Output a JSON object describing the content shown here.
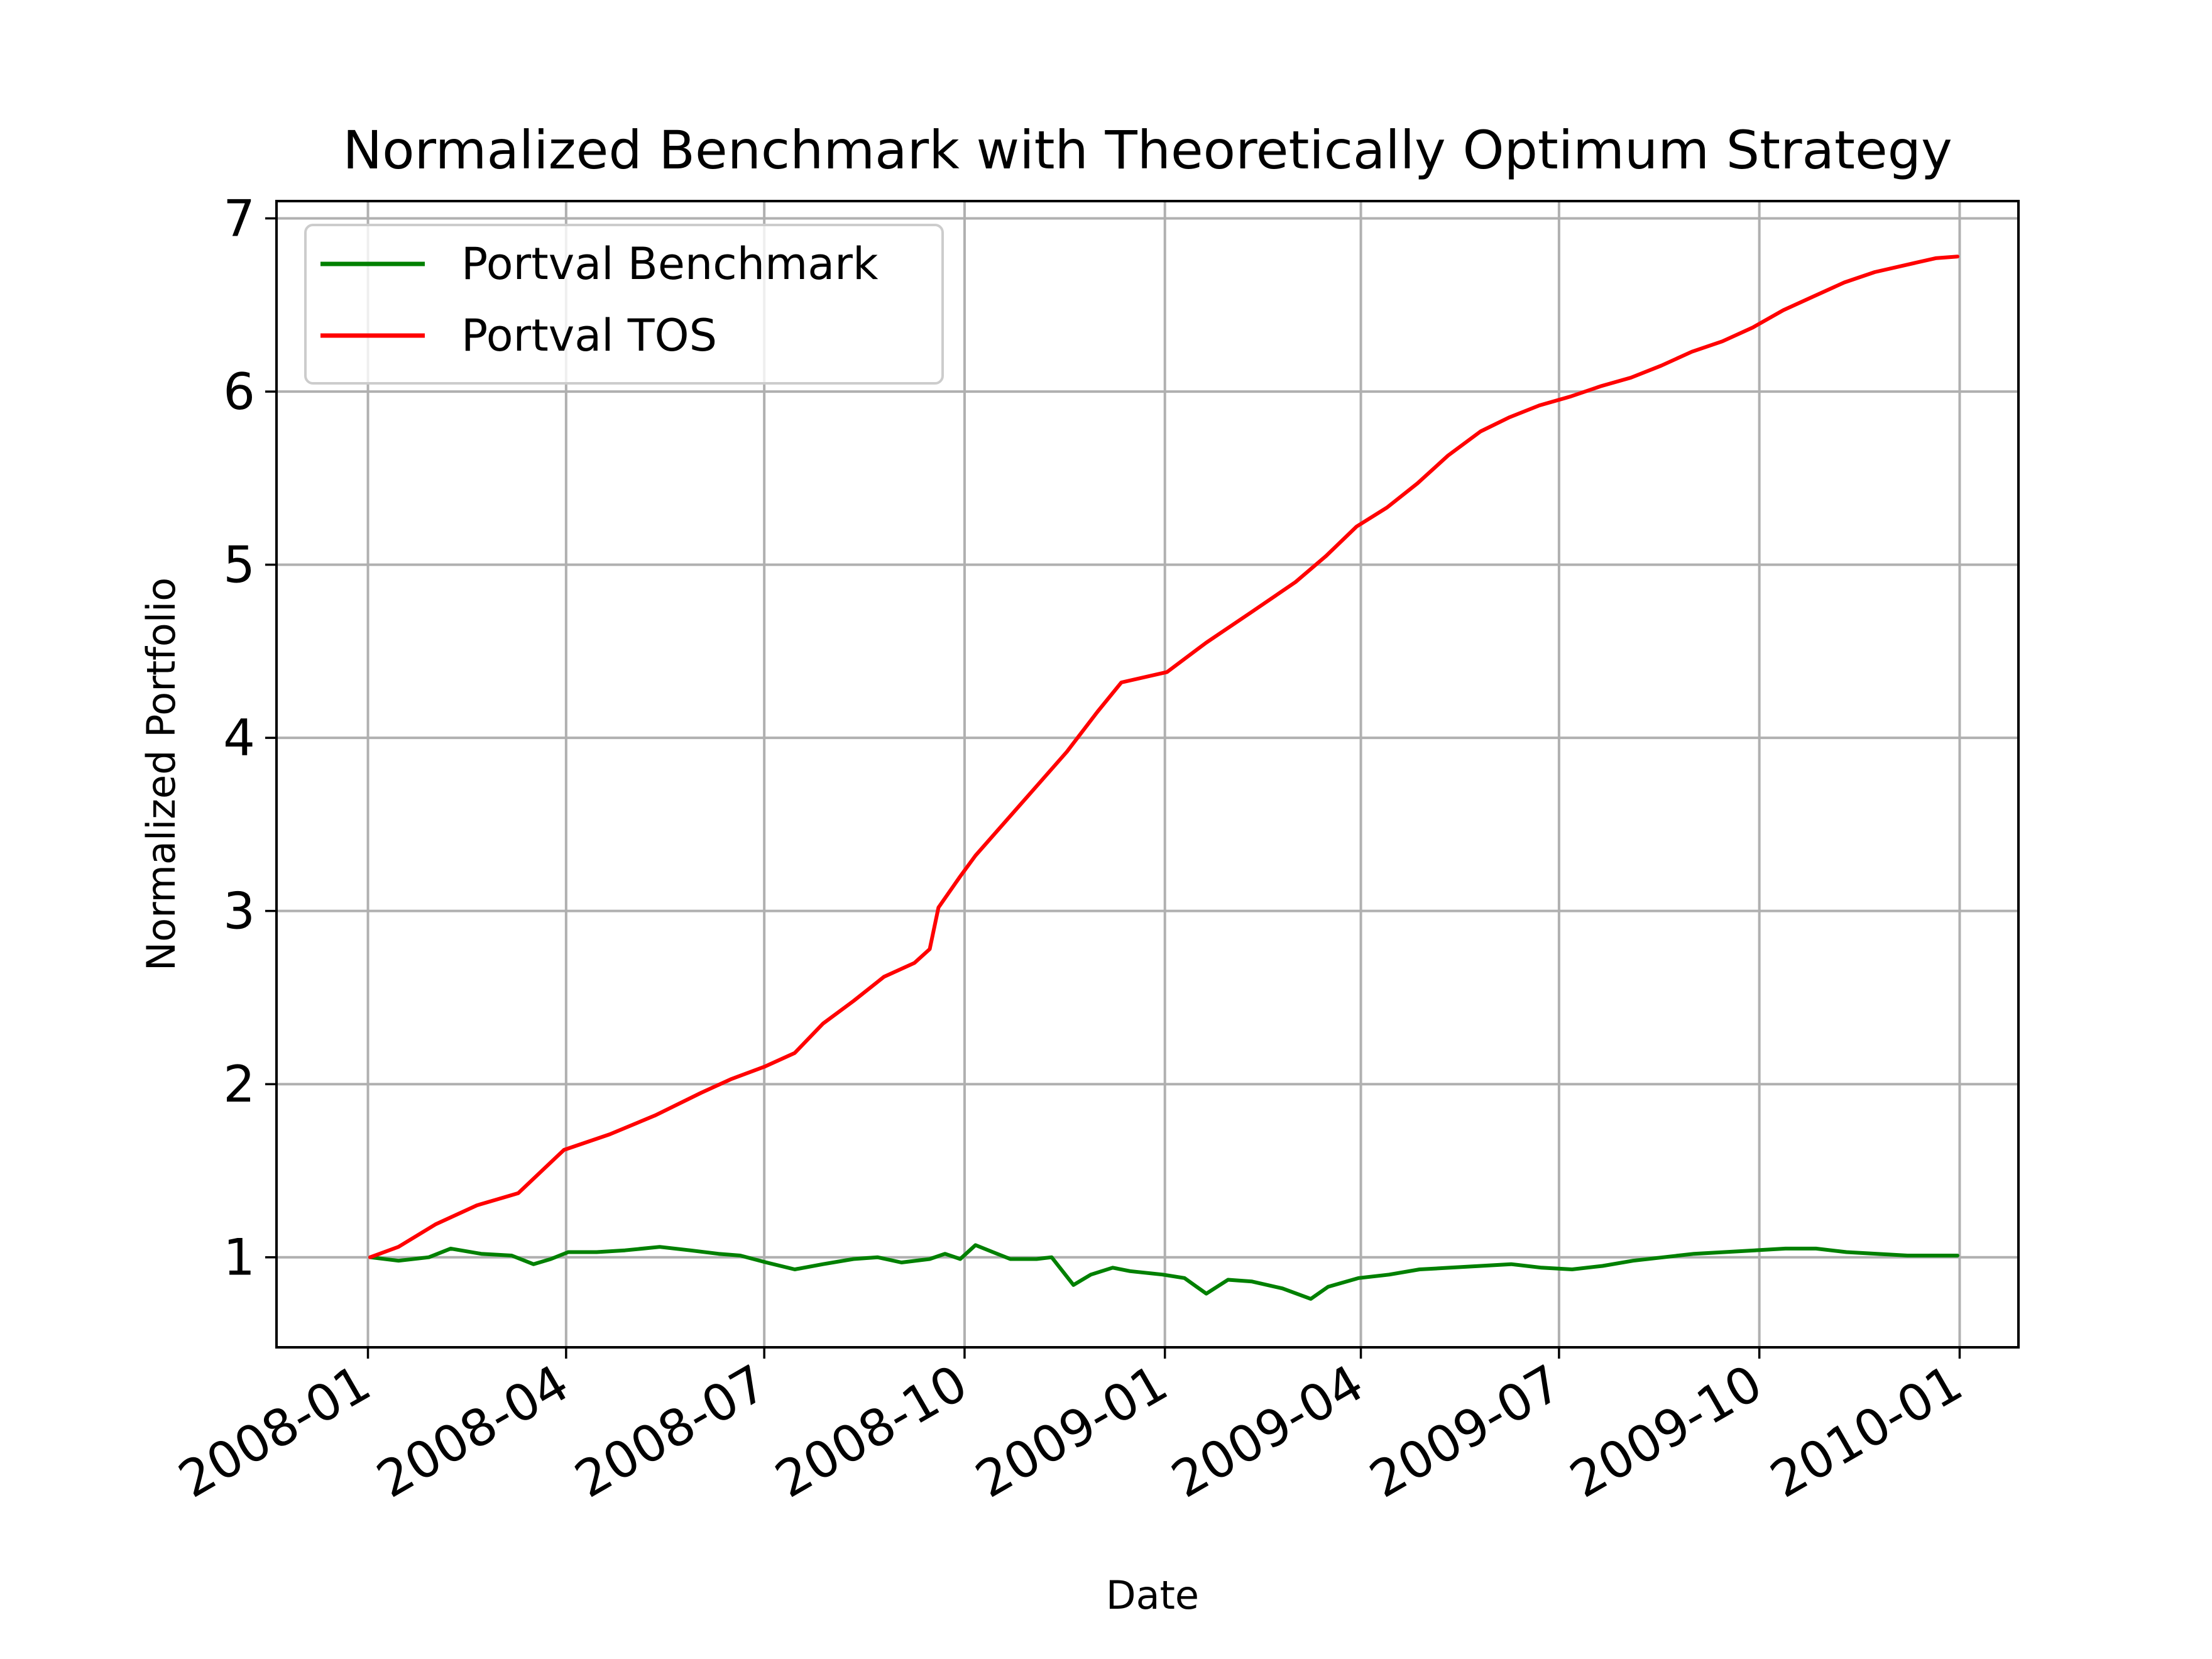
{
  "chart_data": {
    "type": "line",
    "title": "Normalized Benchmark with Theoretically Optimum Strategy",
    "xlabel": "Date",
    "ylabel": "Normalized Portfolio",
    "x_axis": "date",
    "xlim": [
      "2007-11-20",
      "2010-01-28"
    ],
    "ylim": [
      0.48,
      7.1
    ],
    "x_ticks": [
      "2008-01",
      "2008-04",
      "2008-07",
      "2008-10",
      "2009-01",
      "2009-04",
      "2009-07",
      "2009-10",
      "2010-01"
    ],
    "y_ticks": [
      1,
      2,
      3,
      4,
      5,
      6,
      7
    ],
    "grid": true,
    "legend": {
      "position": "top-left"
    },
    "series": [
      {
        "name": "Portval Benchmark",
        "color": "#008000",
        "points": [
          [
            "2008-01-02",
            1.0
          ],
          [
            "2008-01-15",
            0.98
          ],
          [
            "2008-01-29",
            1.0
          ],
          [
            "2008-02-08",
            1.05
          ],
          [
            "2008-02-22",
            1.02
          ],
          [
            "2008-03-07",
            1.01
          ],
          [
            "2008-03-17",
            0.96
          ],
          [
            "2008-03-25",
            0.99
          ],
          [
            "2008-04-02",
            1.03
          ],
          [
            "2008-04-15",
            1.03
          ],
          [
            "2008-04-28",
            1.04
          ],
          [
            "2008-05-14",
            1.06
          ],
          [
            "2008-05-28",
            1.04
          ],
          [
            "2008-06-10",
            1.02
          ],
          [
            "2008-06-20",
            1.01
          ],
          [
            "2008-07-02",
            0.97
          ],
          [
            "2008-07-15",
            0.93
          ],
          [
            "2008-07-28",
            0.96
          ],
          [
            "2008-08-11",
            0.99
          ],
          [
            "2008-08-22",
            1.0
          ],
          [
            "2008-09-02",
            0.97
          ],
          [
            "2008-09-15",
            0.99
          ],
          [
            "2008-09-22",
            1.02
          ],
          [
            "2008-09-29",
            0.99
          ],
          [
            "2008-10-06",
            1.07
          ],
          [
            "2008-10-14",
            1.03
          ],
          [
            "2008-10-22",
            0.99
          ],
          [
            "2008-11-03",
            0.99
          ],
          [
            "2008-11-10",
            1.0
          ],
          [
            "2008-11-20",
            0.84
          ],
          [
            "2008-11-28",
            0.9
          ],
          [
            "2008-12-08",
            0.94
          ],
          [
            "2008-12-16",
            0.92
          ],
          [
            "2008-12-31",
            0.9
          ],
          [
            "2009-01-10",
            0.88
          ],
          [
            "2009-01-20",
            0.79
          ],
          [
            "2009-01-30",
            0.87
          ],
          [
            "2009-02-10",
            0.86
          ],
          [
            "2009-02-24",
            0.82
          ],
          [
            "2009-03-09",
            0.76
          ],
          [
            "2009-03-17",
            0.83
          ],
          [
            "2009-03-31",
            0.88
          ],
          [
            "2009-04-14",
            0.9
          ],
          [
            "2009-04-28",
            0.93
          ],
          [
            "2009-05-12",
            0.94
          ],
          [
            "2009-05-26",
            0.95
          ],
          [
            "2009-06-09",
            0.96
          ],
          [
            "2009-06-23",
            0.94
          ],
          [
            "2009-07-07",
            0.93
          ],
          [
            "2009-07-21",
            0.95
          ],
          [
            "2009-08-04",
            0.98
          ],
          [
            "2009-08-18",
            1.0
          ],
          [
            "2009-09-01",
            1.02
          ],
          [
            "2009-09-15",
            1.03
          ],
          [
            "2009-09-29",
            1.04
          ],
          [
            "2009-10-13",
            1.05
          ],
          [
            "2009-10-27",
            1.05
          ],
          [
            "2009-11-10",
            1.03
          ],
          [
            "2009-11-24",
            1.02
          ],
          [
            "2009-12-08",
            1.01
          ],
          [
            "2009-12-31",
            1.01
          ]
        ]
      },
      {
        "name": "Portval TOS",
        "color": "#ff0000",
        "points": [
          [
            "2008-01-02",
            1.0
          ],
          [
            "2008-01-15",
            1.06
          ],
          [
            "2008-02-01",
            1.19
          ],
          [
            "2008-02-20",
            1.3
          ],
          [
            "2008-03-10",
            1.37
          ],
          [
            "2008-03-31",
            1.62
          ],
          [
            "2008-04-21",
            1.71
          ],
          [
            "2008-05-12",
            1.82
          ],
          [
            "2008-06-02",
            1.95
          ],
          [
            "2008-06-16",
            2.03
          ],
          [
            "2008-07-01",
            2.1
          ],
          [
            "2008-07-15",
            2.18
          ],
          [
            "2008-07-28",
            2.35
          ],
          [
            "2008-08-11",
            2.48
          ],
          [
            "2008-08-25",
            2.62
          ],
          [
            "2008-09-08",
            2.7
          ],
          [
            "2008-09-15",
            2.78
          ],
          [
            "2008-09-19",
            3.02
          ],
          [
            "2008-09-29",
            3.2
          ],
          [
            "2008-10-06",
            3.32
          ],
          [
            "2008-10-20",
            3.52
          ],
          [
            "2008-11-03",
            3.72
          ],
          [
            "2008-11-17",
            3.92
          ],
          [
            "2008-12-01",
            4.15
          ],
          [
            "2008-12-12",
            4.32
          ],
          [
            "2009-01-02",
            4.38
          ],
          [
            "2009-01-20",
            4.55
          ],
          [
            "2009-02-09",
            4.72
          ],
          [
            "2009-03-02",
            4.9
          ],
          [
            "2009-03-16",
            5.05
          ],
          [
            "2009-03-30",
            5.22
          ],
          [
            "2009-04-13",
            5.33
          ],
          [
            "2009-04-27",
            5.47
          ],
          [
            "2009-05-11",
            5.63
          ],
          [
            "2009-05-26",
            5.77
          ],
          [
            "2009-06-08",
            5.85
          ],
          [
            "2009-06-22",
            5.92
          ],
          [
            "2009-07-06",
            5.97
          ],
          [
            "2009-07-20",
            6.03
          ],
          [
            "2009-08-03",
            6.08
          ],
          [
            "2009-08-17",
            6.15
          ],
          [
            "2009-08-31",
            6.23
          ],
          [
            "2009-09-14",
            6.29
          ],
          [
            "2009-09-28",
            6.37
          ],
          [
            "2009-10-12",
            6.47
          ],
          [
            "2009-10-26",
            6.55
          ],
          [
            "2009-11-09",
            6.63
          ],
          [
            "2009-11-23",
            6.69
          ],
          [
            "2009-12-07",
            6.73
          ],
          [
            "2009-12-21",
            6.77
          ],
          [
            "2009-12-31",
            6.78
          ]
        ]
      }
    ]
  }
}
